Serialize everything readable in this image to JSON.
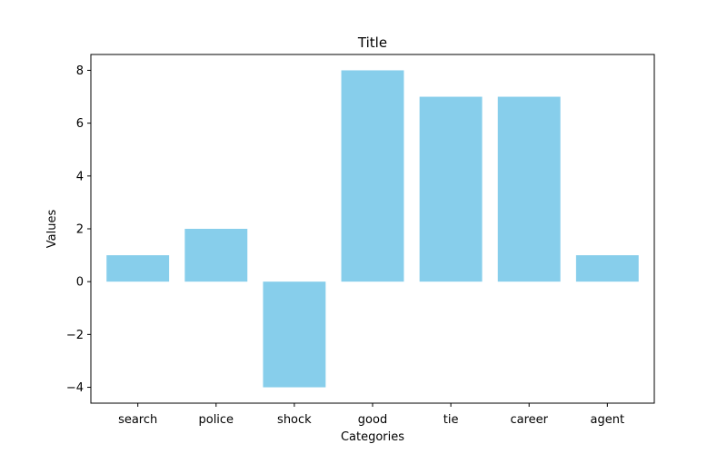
{
  "chart_data": {
    "type": "bar",
    "title": "Title",
    "xlabel": "Categories",
    "ylabel": "Values",
    "categories": [
      "search",
      "police",
      "shock",
      "good",
      "tie",
      "career",
      "agent"
    ],
    "values": [
      1,
      2,
      -4,
      8,
      7,
      7,
      1
    ],
    "ylim": [
      -4.6,
      8.6
    ],
    "yticks": [
      -4,
      -2,
      0,
      2,
      4,
      6,
      8
    ],
    "ytick_labels": [
      "−4",
      "−2",
      "0",
      "2",
      "4",
      "6",
      "8"
    ],
    "bar_color": "#87ceeb",
    "grid": false,
    "legend": "none"
  }
}
